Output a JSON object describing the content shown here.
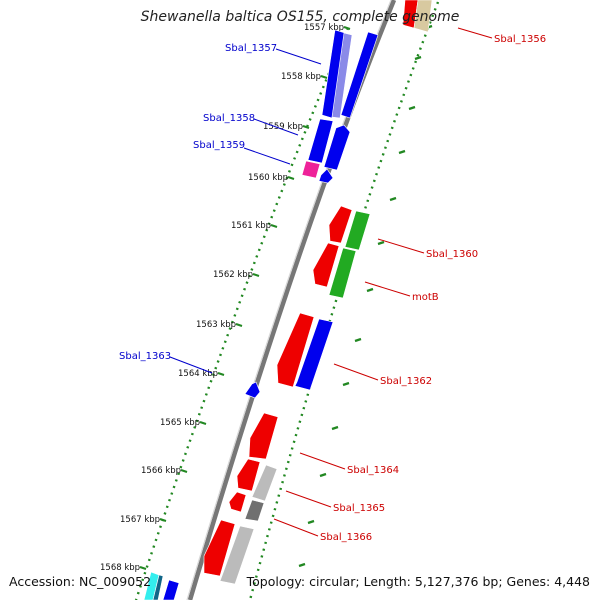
{
  "title": "Shewanella baltica OS155, complete genome",
  "accession_label": "Accession: NC_009052",
  "topology_label": "Topology: circular; Length: 5,127,376 bp; Genes: 4,448",
  "colors": {
    "forward_gene": "#0000ee",
    "reverse_gene": "#ee0000",
    "other_gene": "#22aa22",
    "gray_gene": "#bbbbbb",
    "dark_gray_gene": "#707070",
    "pink_gene": "#ee2299",
    "cyan_gene": "#33eeee",
    "tan_gene": "#d8c9a0",
    "ticks": "#228822",
    "backbone": "#888888",
    "label_blue": "#0000cc",
    "label_red": "#cc0000"
  },
  "scale": {
    "unit": "kbp",
    "ticks": [
      "1557 kbp",
      "1558 kbp",
      "1559 kbp",
      "1560 kbp",
      "1561 kbp",
      "1562 kbp",
      "1563 kbp",
      "1564 kbp",
      "1565 kbp",
      "1566 kbp",
      "1567 kbp",
      "1568 kbp"
    ]
  },
  "gene_labels": [
    {
      "text": "Sbal_1357",
      "strand": "forward"
    },
    {
      "text": "Sbal_1358",
      "strand": "forward"
    },
    {
      "text": "Sbal_1359",
      "strand": "forward"
    },
    {
      "text": "Sbal_1363",
      "strand": "forward"
    },
    {
      "text": "Sbal_1356",
      "strand": "reverse"
    },
    {
      "text": "Sbal_1360",
      "strand": "reverse"
    },
    {
      "text": "motB",
      "strand": "reverse"
    },
    {
      "text": "Sbal_1362",
      "strand": "reverse"
    },
    {
      "text": "Sbal_1364",
      "strand": "reverse"
    },
    {
      "text": "Sbal_1365",
      "strand": "reverse"
    },
    {
      "text": "Sbal_1366",
      "strand": "reverse"
    }
  ]
}
